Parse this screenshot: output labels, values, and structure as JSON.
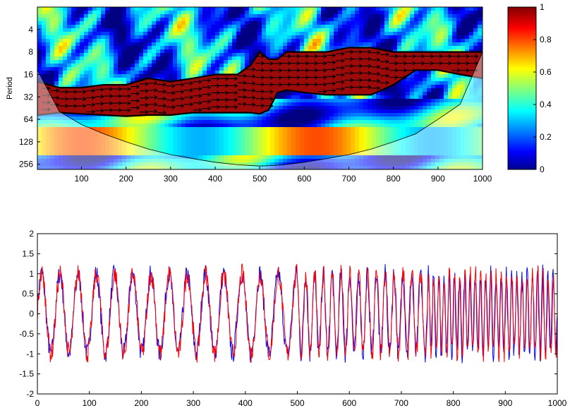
{
  "chart_data": [
    {
      "type": "heatmap",
      "title": "",
      "xlabel": "",
      "ylabel": "Period",
      "xlim": [
        1,
        1000
      ],
      "ylim": [
        2,
        300
      ],
      "y_scale": "log2",
      "y_reversed": true,
      "x_ticks": [
        "100",
        "200",
        "300",
        "400",
        "500",
        "600",
        "700",
        "800",
        "900",
        "1000"
      ],
      "y_ticks": [
        "4",
        "8",
        "16",
        "32",
        "64",
        "128",
        "256"
      ],
      "colorbar": {
        "colormap": "jet",
        "range": [
          0,
          1
        ],
        "ticks": [
          "0",
          "0.2",
          "0.4",
          "0.6",
          "0.8",
          "1"
        ]
      },
      "high_coherence_band": {
        "x": [
          1,
          50,
          100,
          150,
          200,
          250,
          300,
          350,
          400,
          450,
          480,
          500,
          520,
          540,
          560,
          600,
          650,
          700,
          750,
          800,
          850,
          900,
          950,
          1000
        ],
        "period_low": [
          20,
          24,
          24,
          22,
          22,
          18,
          20,
          18,
          16,
          16,
          12,
          8,
          10,
          10,
          8,
          8,
          8,
          7,
          7,
          8,
          8,
          8,
          8,
          8
        ],
        "period_high": [
          56,
          52,
          54,
          56,
          58,
          56,
          56,
          52,
          52,
          52,
          52,
          54,
          48,
          28,
          26,
          28,
          30,
          30,
          30,
          22,
          14,
          14,
          16,
          18
        ]
      },
      "cone_of_influence": {
        "x": [
          1,
          50,
          100,
          150,
          200,
          250,
          300,
          350,
          400,
          450,
          500,
          550,
          600,
          650,
          700,
          750,
          800,
          850,
          900,
          950,
          1000
        ],
        "period": [
          14,
          50,
          75,
          100,
          128,
          160,
          190,
          215,
          240,
          260,
          270,
          262,
          240,
          215,
          190,
          160,
          128,
          100,
          64,
          40,
          8
        ]
      },
      "phase_arrows": "mostly pointing right (in-phase) in the 16–64 period band"
    },
    {
      "type": "line",
      "title": "",
      "xlabel": "",
      "ylabel": "",
      "xlim": [
        0,
        1000
      ],
      "ylim": [
        -2,
        2
      ],
      "x_ticks": [
        "0",
        "100",
        "200",
        "300",
        "400",
        "500",
        "600",
        "700",
        "800",
        "900",
        "1000"
      ],
      "y_ticks": [
        "-2",
        "-1.5",
        "-1",
        "-0.5",
        "0",
        "0.5",
        "1",
        "1.5",
        "2"
      ],
      "signal": {
        "amplitude": 1.0,
        "period_segments": [
          {
            "x_start": 0,
            "x_end": 500,
            "period": 35
          },
          {
            "x_start": 500,
            "x_end": 750,
            "period": 17
          },
          {
            "x_start": 750,
            "x_end": 1000,
            "period": 10
          }
        ],
        "noise_amplitude": 0.25
      },
      "series": [
        {
          "color": "#0000ff"
        },
        {
          "color": "#ff0000"
        }
      ]
    }
  ]
}
